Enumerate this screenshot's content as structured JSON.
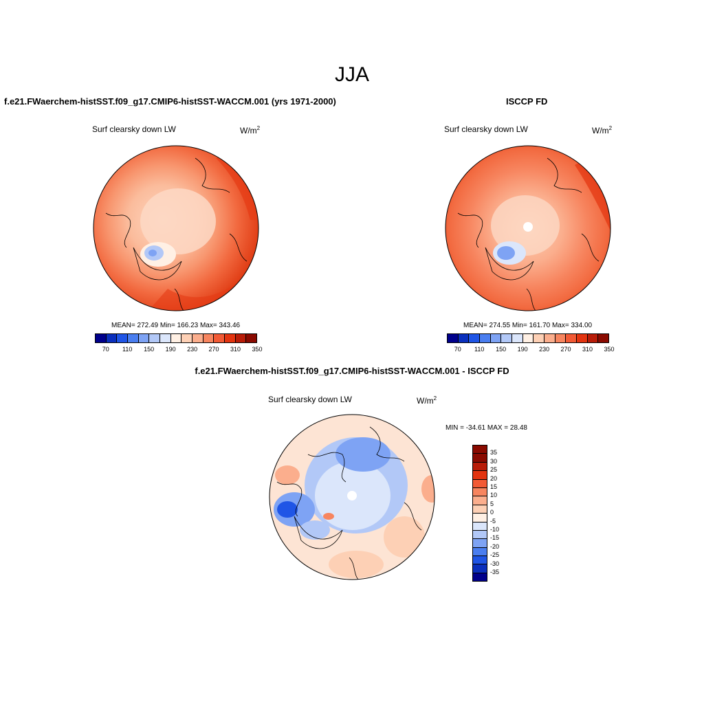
{
  "season": "JJA",
  "panel_model": {
    "title": "f.e21.FWaerchem-histSST.f09_g17.CMIP6-histSST-WACCM.001 (yrs 1971-2000)",
    "variable": "Surf clearsky down LW",
    "unit_base": "W/m",
    "unit_exp": "2",
    "stats": "MEAN= 272.49  Min= 166.23  Max= 343.46"
  },
  "panel_obs": {
    "title": "ISCCP FD",
    "variable": "Surf clearsky down LW",
    "unit_base": "W/m",
    "unit_exp": "2",
    "stats": "MEAN= 274.55  Min= 161.70  Max= 334.00"
  },
  "panel_diff": {
    "title": "f.e21.FWaerchem-histSST.f09_g17.CMIP6-histSST-WACCM.001 - ISCCP FD",
    "variable": "Surf clearsky down LW",
    "unit_base": "W/m",
    "unit_exp": "2",
    "stats": "MIN = -34.61 MAX =  28.48"
  },
  "colorbar_abs": {
    "ticks": [
      "70",
      "110",
      "150",
      "190",
      "230",
      "270",
      "310",
      "350"
    ],
    "colors": [
      "#00008b",
      "#0a2fbd",
      "#1f55e6",
      "#4a7ef0",
      "#7ea3f4",
      "#b2c8f7",
      "#dbe6fb",
      "#fff0e4",
      "#fdd0b5",
      "#fbae8d",
      "#f7855f",
      "#f25a35",
      "#e33410",
      "#b81c08",
      "#8a0a00"
    ]
  },
  "colorbar_diff": {
    "ticks": [
      "35",
      "30",
      "25",
      "20",
      "15",
      "10",
      "5",
      "0",
      "-5",
      "-10",
      "-15",
      "-20",
      "-25",
      "-30",
      "-35"
    ],
    "colors": [
      "#8a0a00",
      "#b81c08",
      "#e33410",
      "#f25a35",
      "#f7855f",
      "#fbae8d",
      "#fdd0b5",
      "#fff0e4",
      "#dbe6fb",
      "#b2c8f7",
      "#7ea3f4",
      "#4a7ef0",
      "#1f55e6",
      "#0a2fbd",
      "#00008b"
    ]
  }
}
